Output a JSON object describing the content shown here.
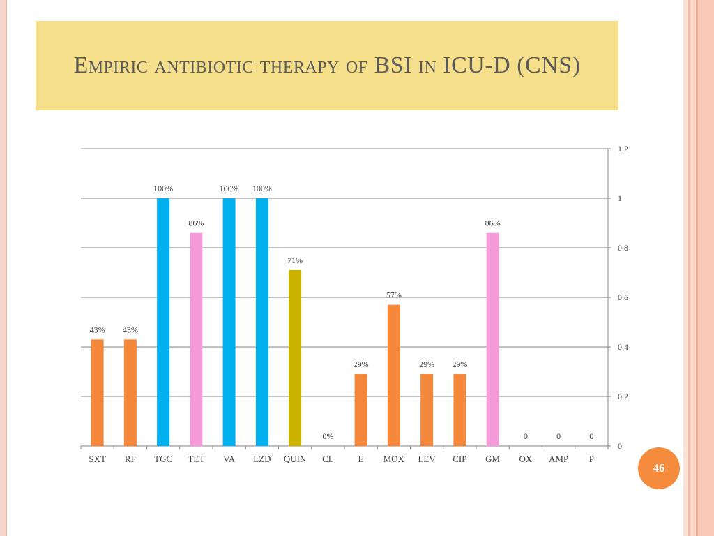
{
  "slide": {
    "title": "Empiric antibiotic therapy of BSI in ICU-D (CNS)",
    "page_number": "46"
  },
  "colors": {
    "title_background": "#f6df8a",
    "title_text": "#5a5a5a",
    "orange": "#f5873b",
    "blue": "#00b0ef",
    "pink": "#f49ad9",
    "olive": "#ccb300",
    "page_badge": "#f58b3c"
  },
  "chart_data": {
    "type": "bar",
    "title": "",
    "xlabel": "",
    "ylabel": "",
    "categories": [
      "SXT",
      "RF",
      "TGC",
      "TET",
      "VA",
      "LZD",
      "QUIN",
      "CL",
      "E",
      "MOX",
      "LEV",
      "CIP",
      "GM",
      "OX",
      "AMP",
      "P"
    ],
    "values": [
      0.43,
      0.43,
      1.0,
      0.86,
      1.0,
      1.0,
      0.71,
      0,
      0.29,
      0.57,
      0.29,
      0.29,
      0.86,
      0,
      0,
      0
    ],
    "data_labels": [
      "43%",
      "43%",
      "100%",
      "86%",
      "100%",
      "100%",
      "71%",
      "0%",
      "29%",
      "57%",
      "29%",
      "29%",
      "86%",
      "0",
      "0",
      "0"
    ],
    "bar_colors": [
      "orange",
      "orange",
      "blue",
      "pink",
      "blue",
      "blue",
      "olive",
      "orange",
      "orange",
      "orange",
      "orange",
      "orange",
      "pink",
      "orange",
      "orange",
      "orange"
    ],
    "ylim": [
      0,
      1.2
    ],
    "yticks": [
      "0",
      "0.2",
      "0.4",
      "0.6",
      "0.8",
      "1",
      "1.2"
    ],
    "y_axis_position": "right",
    "grid": true,
    "legend": "none"
  }
}
